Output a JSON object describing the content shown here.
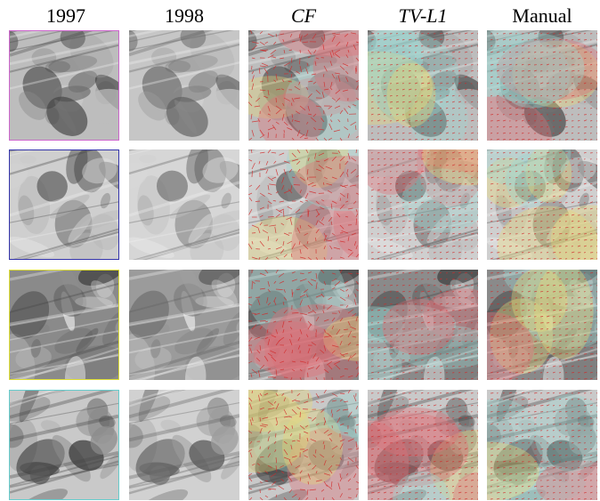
{
  "columns": [
    {
      "label": "1997",
      "italic": false
    },
    {
      "label": "1998",
      "italic": false
    },
    {
      "label": "CF",
      "italic": true
    },
    {
      "label": "TV-L1",
      "italic": true
    },
    {
      "label": "Manual",
      "italic": false
    }
  ],
  "row_border_colors": [
    "#cc66cc",
    "#3333aa",
    "#dddd33",
    "#66cccc"
  ],
  "overlay_colors": {
    "high": "#e0707a",
    "mid": "#e8d87a",
    "low": "#9fd6cf",
    "vector": "#d22a2a"
  }
}
